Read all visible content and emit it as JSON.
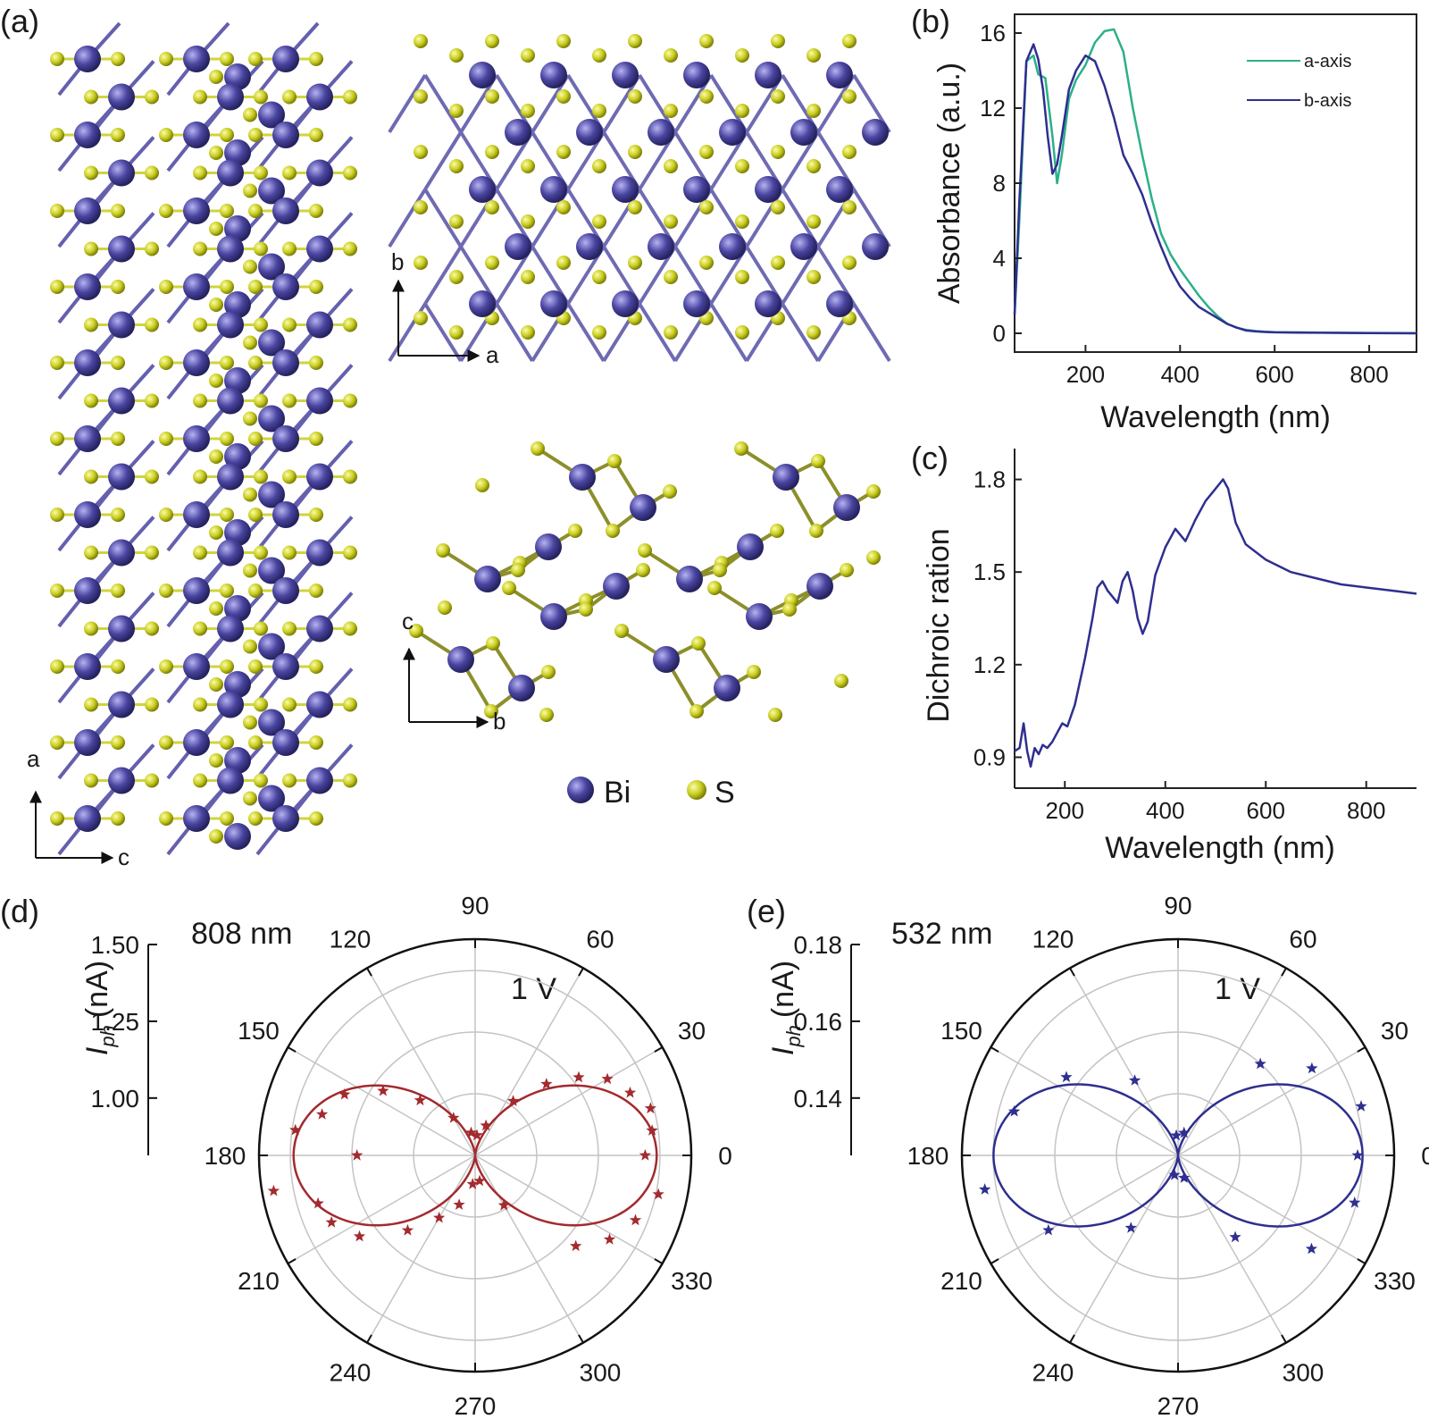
{
  "panels": {
    "a": "(a)",
    "b": "(b)",
    "c": "(c)",
    "d": "(d)",
    "e": "(e)"
  },
  "structure": {
    "atoms": [
      {
        "symbol": "Bi",
        "color": "#4a45a0"
      },
      {
        "symbol": "S",
        "color": "#c8cc1e"
      }
    ],
    "views": [
      {
        "name": "side-view",
        "axes": [
          "a",
          "c"
        ]
      },
      {
        "name": "top-view",
        "axes": [
          "b",
          "a"
        ]
      },
      {
        "name": "cross-section",
        "axes": [
          "c",
          "b"
        ]
      }
    ]
  },
  "chart_data": [
    {
      "panel": "b",
      "type": "line",
      "xlabel": "Wavelength (nm)",
      "ylabel": "Absorbance (a.u.)",
      "xlim": [
        50,
        900
      ],
      "ylim": [
        -1,
        17
      ],
      "xticks": [
        200,
        400,
        600,
        800
      ],
      "yticks": [
        0,
        4,
        8,
        12,
        16
      ],
      "legend_position": "top-right",
      "series": [
        {
          "name": "a-axis",
          "color": "#2bb08a",
          "x": [
            50,
            60,
            75,
            90,
            100,
            115,
            130,
            140,
            150,
            165,
            180,
            200,
            220,
            240,
            260,
            280,
            300,
            320,
            340,
            360,
            380,
            400,
            420,
            440,
            460,
            480,
            500,
            520,
            540,
            560,
            580,
            600,
            650,
            700,
            800,
            900
          ],
          "y": [
            1,
            6,
            14.5,
            14.8,
            13.8,
            13.6,
            10.5,
            8.0,
            9.5,
            12.5,
            13.5,
            14.3,
            15.5,
            16.1,
            16.2,
            15.0,
            12.0,
            9.5,
            7.2,
            5.3,
            4.2,
            3.4,
            2.7,
            2.0,
            1.4,
            0.9,
            0.5,
            0.3,
            0.18,
            0.12,
            0.08,
            0.06,
            0.05,
            0.04,
            0.02,
            0.01
          ]
        },
        {
          "name": "b-axis",
          "color": "#2e2f8f",
          "x": [
            50,
            60,
            75,
            90,
            100,
            110,
            120,
            130,
            140,
            150,
            165,
            180,
            200,
            220,
            240,
            260,
            280,
            300,
            320,
            340,
            360,
            380,
            400,
            420,
            440,
            460,
            480,
            500,
            520,
            540,
            560,
            580,
            600,
            650,
            700,
            800,
            900
          ],
          "y": [
            1,
            7,
            14.5,
            15.4,
            14.6,
            13.0,
            10.5,
            8.5,
            9.0,
            10.5,
            13.0,
            14.0,
            14.8,
            14.5,
            13.2,
            11.5,
            9.5,
            8.5,
            7.4,
            5.9,
            4.6,
            3.4,
            2.5,
            1.9,
            1.4,
            1.1,
            0.8,
            0.5,
            0.3,
            0.15,
            0.1,
            0.07,
            0.05,
            0.04,
            0.03,
            0.01,
            0.0
          ]
        }
      ]
    },
    {
      "panel": "c",
      "type": "line",
      "xlabel": "Wavelength (nm)",
      "ylabel": "Dichroic ration",
      "xlim": [
        100,
        900
      ],
      "ylim": [
        0.8,
        1.9
      ],
      "xticks": [
        200,
        400,
        600,
        800
      ],
      "yticks": [
        0.9,
        1.2,
        1.5,
        1.8
      ],
      "series": [
        {
          "color": "#2e2f8f",
          "x": [
            100,
            110,
            118,
            125,
            132,
            140,
            148,
            156,
            165,
            175,
            185,
            195,
            205,
            220,
            240,
            255,
            265,
            275,
            285,
            295,
            305,
            315,
            325,
            335,
            345,
            355,
            365,
            380,
            400,
            420,
            440,
            460,
            480,
            500,
            515,
            525,
            540,
            560,
            600,
            650,
            700,
            750,
            800,
            850,
            900
          ],
          "y": [
            0.92,
            0.93,
            1.01,
            0.92,
            0.87,
            0.93,
            0.91,
            0.94,
            0.93,
            0.95,
            0.98,
            1.01,
            1.0,
            1.07,
            1.22,
            1.35,
            1.45,
            1.47,
            1.44,
            1.42,
            1.4,
            1.47,
            1.5,
            1.44,
            1.35,
            1.3,
            1.34,
            1.49,
            1.58,
            1.64,
            1.6,
            1.67,
            1.73,
            1.77,
            1.8,
            1.77,
            1.66,
            1.59,
            1.54,
            1.5,
            1.48,
            1.46,
            1.45,
            1.44,
            1.43
          ]
        }
      ]
    },
    {
      "panel": "d",
      "type": "scatter",
      "subtype": "polar",
      "wavelength_label": "808 nm",
      "voltage_label": "1 V",
      "rlabel": "I",
      "rlabel_sub": "ph",
      "runit": "(nA)",
      "rlim": [
        0.75,
        1.5
      ],
      "rticks": [
        "1.50",
        "1.25",
        "1.00"
      ],
      "angle_ticks": [
        "0",
        "30",
        "60",
        "90",
        "120",
        "150",
        "180",
        "210",
        "240",
        "270",
        "300",
        "330"
      ],
      "color": "#a32a2e",
      "fit": {
        "r_min": 0.75,
        "r_max": 1.38,
        "phase_deg": 0
      },
      "points": [
        {
          "theta": 0,
          "r": 1.34
        },
        {
          "theta": 8,
          "r": 1.37
        },
        {
          "theta": 15,
          "r": 1.38
        },
        {
          "theta": 22,
          "r": 1.33
        },
        {
          "theta": 30,
          "r": 1.28
        },
        {
          "theta": 37,
          "r": 1.2
        },
        {
          "theta": 45,
          "r": 1.1
        },
        {
          "theta": 55,
          "r": 0.98
        },
        {
          "theta": 70,
          "r": 0.86
        },
        {
          "theta": 85,
          "r": 0.82
        },
        {
          "theta": 100,
          "r": 0.83
        },
        {
          "theta": 120,
          "r": 0.9
        },
        {
          "theta": 135,
          "r": 1.02
        },
        {
          "theta": 145,
          "r": 1.14
        },
        {
          "theta": 155,
          "r": 1.25
        },
        {
          "theta": 165,
          "r": 1.3
        },
        {
          "theta": 172,
          "r": 1.38
        },
        {
          "theta": 180,
          "r": 1.16
        },
        {
          "theta": 190,
          "r": 1.46
        },
        {
          "theta": 197,
          "r": 1.32
        },
        {
          "theta": 205,
          "r": 1.3
        },
        {
          "theta": 215,
          "r": 1.24
        },
        {
          "theta": 228,
          "r": 1.1
        },
        {
          "theta": 240,
          "r": 1.0
        },
        {
          "theta": 252,
          "r": 0.93
        },
        {
          "theta": 265,
          "r": 0.85
        },
        {
          "theta": 280,
          "r": 0.84
        },
        {
          "theta": 300,
          "r": 0.95
        },
        {
          "theta": 318,
          "r": 1.22
        },
        {
          "theta": 328,
          "r": 1.3
        },
        {
          "theta": 338,
          "r": 1.35
        },
        {
          "theta": 348,
          "r": 1.4
        }
      ]
    },
    {
      "panel": "e",
      "type": "scatter",
      "subtype": "polar",
      "wavelength_label": "532 nm",
      "voltage_label": "1 V",
      "rlabel": "I",
      "rlabel_sub": "ph",
      "runit": "(nA)",
      "rlim": [
        0.115,
        0.18
      ],
      "rticks": [
        "0.18",
        "0.16",
        "0.14"
      ],
      "angle_ticks": [
        "0",
        "30",
        "60",
        "90",
        "120",
        "150",
        "180",
        "210",
        "240",
        "270",
        "300",
        "330"
      ],
      "color": "#2e2f8f",
      "fit": {
        "r_min": 0.115,
        "r_max": 0.1705,
        "phase_deg": 0
      },
      "points": [
        {
          "theta": 0,
          "r": 0.169
        },
        {
          "theta": 15,
          "r": 0.172
        },
        {
          "theta": 33,
          "r": 0.163
        },
        {
          "theta": 48,
          "r": 0.152
        },
        {
          "theta": 75,
          "r": 0.122
        },
        {
          "theta": 95,
          "r": 0.121
        },
        {
          "theta": 120,
          "r": 0.141
        },
        {
          "theta": 145,
          "r": 0.156
        },
        {
          "theta": 165,
          "r": 0.166
        },
        {
          "theta": 190,
          "r": 0.174
        },
        {
          "theta": 210,
          "r": 0.16
        },
        {
          "theta": 237,
          "r": 0.141
        },
        {
          "theta": 260,
          "r": 0.121
        },
        {
          "theta": 285,
          "r": 0.122
        },
        {
          "theta": 305,
          "r": 0.145
        },
        {
          "theta": 325,
          "r": 0.164
        },
        {
          "theta": 345,
          "r": 0.17
        }
      ]
    }
  ]
}
